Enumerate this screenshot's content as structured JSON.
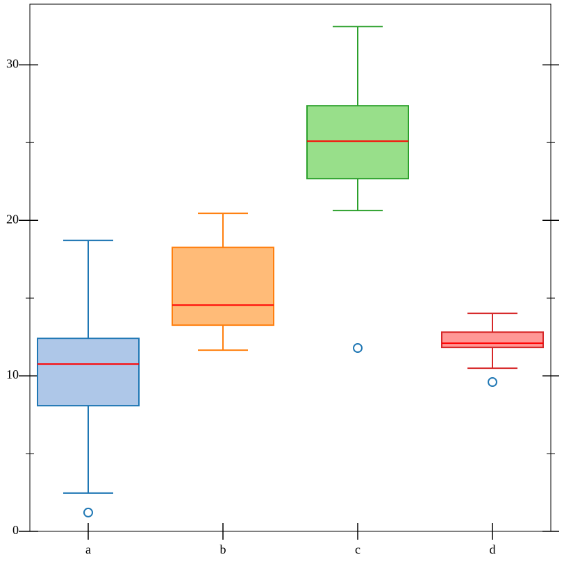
{
  "chart_data": {
    "type": "box",
    "categories": [
      "a",
      "b",
      "c",
      "d"
    ],
    "ylim": [
      0,
      33.9
    ],
    "yticks": [
      0,
      10,
      20,
      30
    ],
    "minor_yticks": [
      5,
      15,
      25
    ],
    "median_color": "#ff0000",
    "flier_color": "#1f77b4",
    "boxes": [
      {
        "whislo": 2.46,
        "q1": 8.08,
        "med": 10.76,
        "q3": 12.41,
        "whishi": 18.71,
        "fliers": [
          1.21
        ],
        "color": "#aec7e8",
        "edgecolor": "#1f77b4"
      },
      {
        "whislo": 11.65,
        "q1": 13.26,
        "med": 14.55,
        "q3": 18.26,
        "whishi": 20.45,
        "fliers": [],
        "color": "#ffbb78",
        "edgecolor": "#ff7f0e"
      },
      {
        "whislo": 20.63,
        "q1": 22.68,
        "med": 25.09,
        "q3": 27.37,
        "whishi": 32.46,
        "fliers": [
          11.79
        ],
        "color": "#98df8a",
        "edgecolor": "#2ca02c"
      },
      {
        "whislo": 10.49,
        "q1": 11.83,
        "med": 12.1,
        "q3": 12.81,
        "whishi": 14.02,
        "fliers": [
          9.6
        ],
        "color": "#ff9896",
        "edgecolor": "#d62728"
      }
    ]
  }
}
